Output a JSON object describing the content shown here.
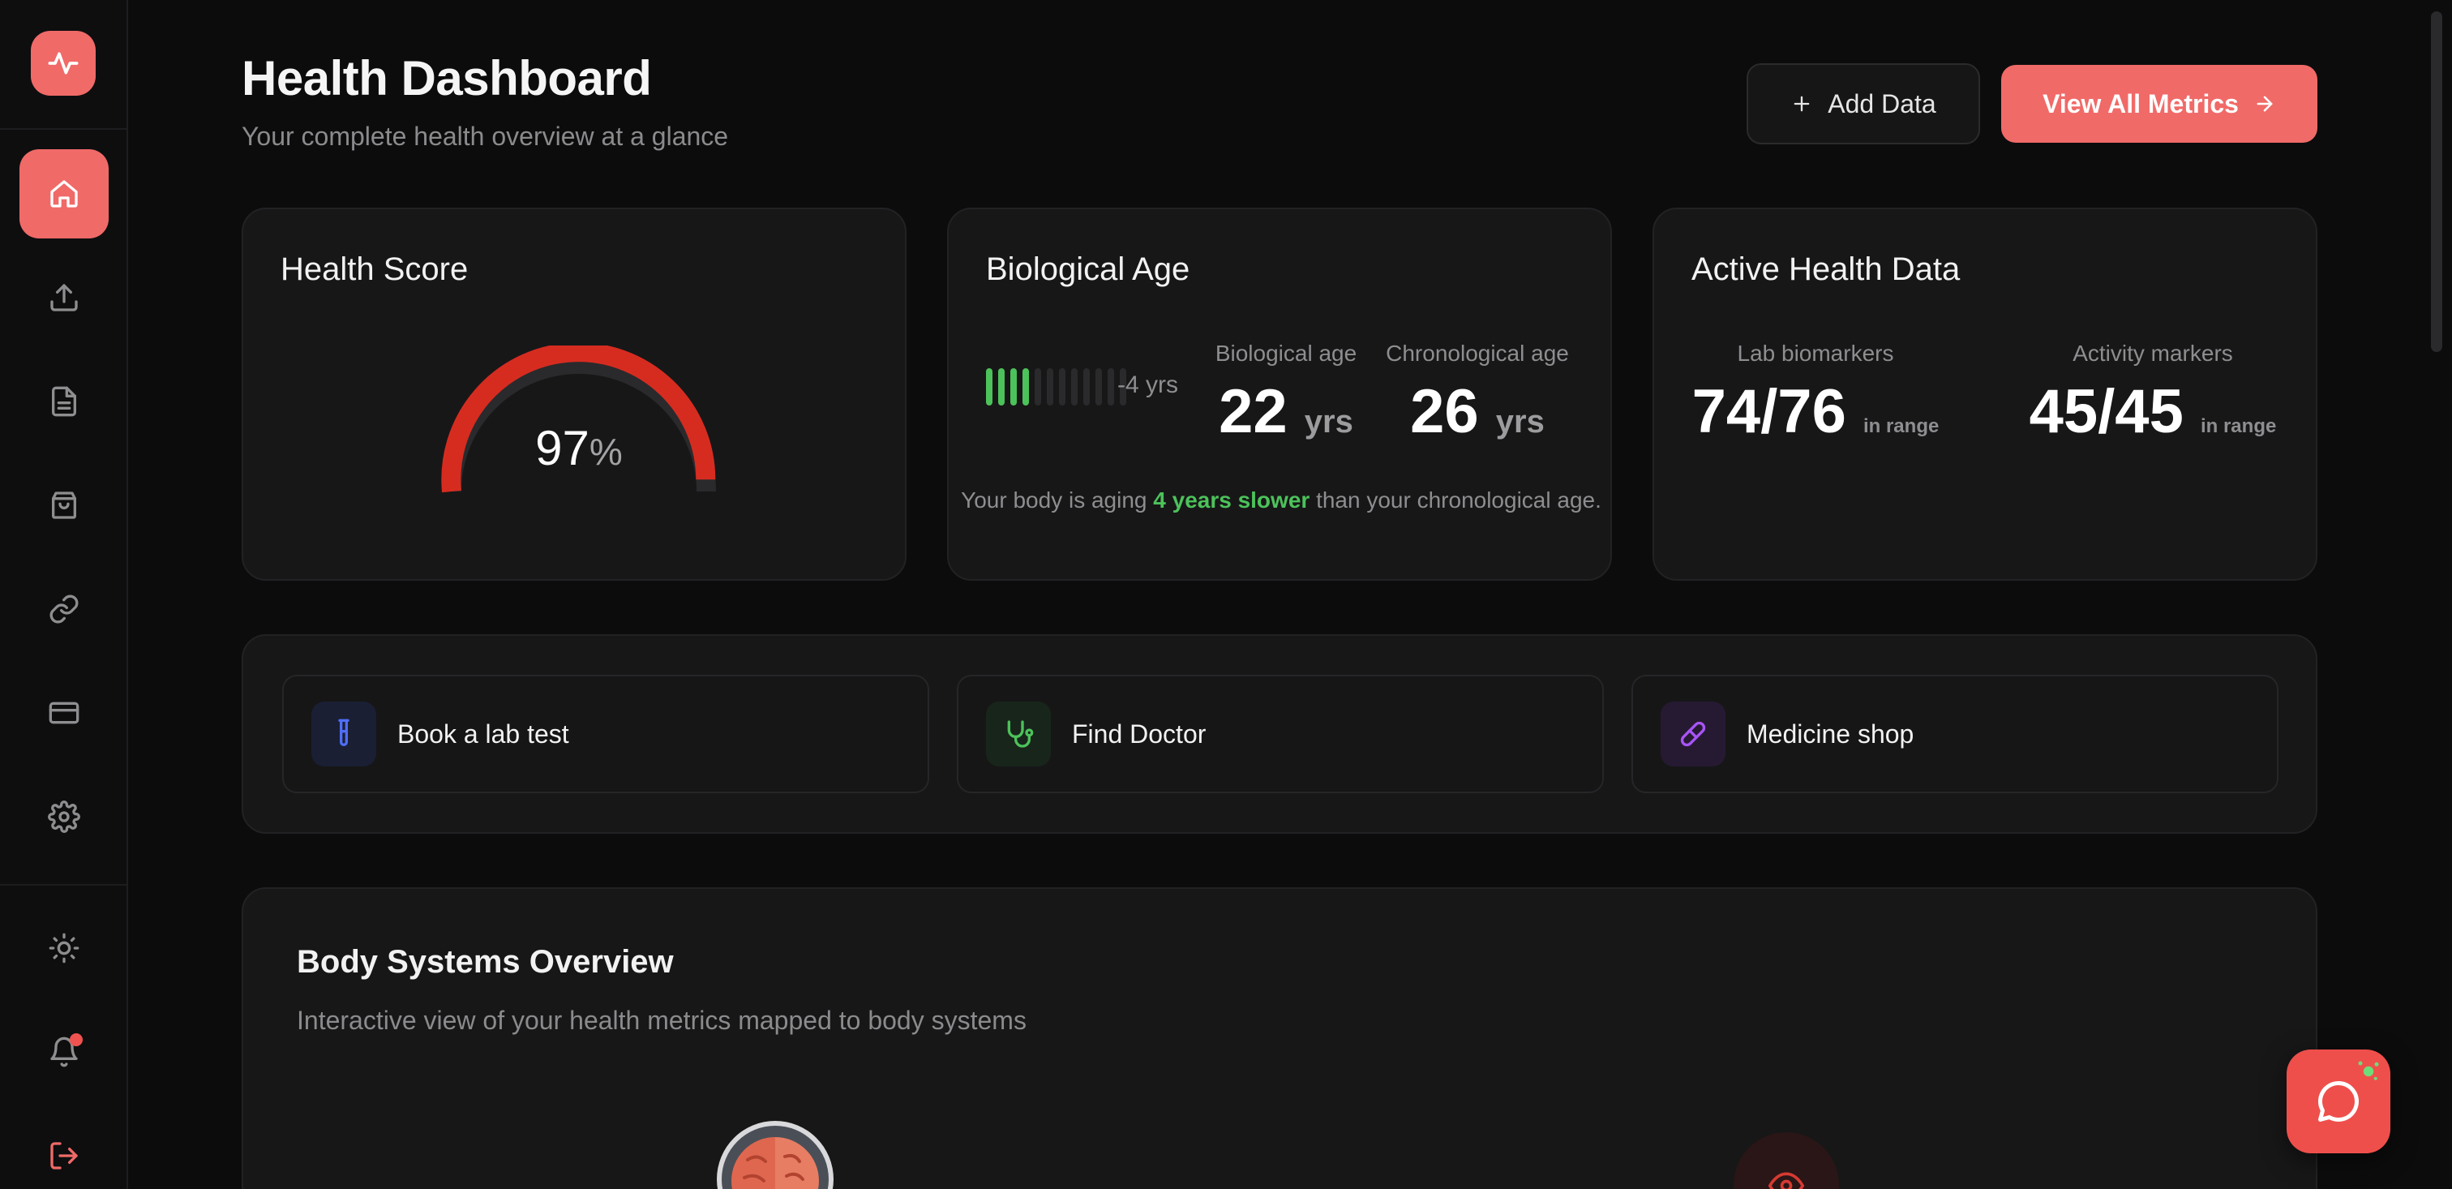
{
  "header": {
    "title": "Health Dashboard",
    "subtitle": "Your complete health overview at a glance",
    "add_label": "Add Data",
    "view_label": "View All Metrics"
  },
  "sidebar": {
    "items": [
      {
        "name": "home",
        "icon": "home-icon",
        "active": true
      },
      {
        "name": "upload",
        "icon": "upload-icon",
        "active": false
      },
      {
        "name": "reports",
        "icon": "document-icon",
        "active": false
      },
      {
        "name": "shop",
        "icon": "shopping-bag-icon",
        "active": false
      },
      {
        "name": "integrations",
        "icon": "link-icon",
        "active": false
      },
      {
        "name": "billing",
        "icon": "credit-card-icon",
        "active": false
      },
      {
        "name": "settings",
        "icon": "gear-icon",
        "active": false
      }
    ],
    "bottom": [
      {
        "name": "theme",
        "icon": "sun-icon"
      },
      {
        "name": "notifications",
        "icon": "bell-icon",
        "has_badge": true
      },
      {
        "name": "logout",
        "icon": "logout-icon"
      }
    ]
  },
  "health_score": {
    "title": "Health Score",
    "value": "97",
    "unit": "%",
    "fraction": 0.97
  },
  "bio_age": {
    "title": "Biological Age",
    "delta": "-4 yrs",
    "bars_total": 12,
    "bars_active": 4,
    "bio_label": "Biological age",
    "bio_value": "22",
    "chrono_label": "Chronological age",
    "chrono_value": "26",
    "unit": "yrs",
    "note_pre": "Your body is aging ",
    "note_highlight": "4 years slower",
    "note_post": " than your chronological age."
  },
  "active_data": {
    "title": "Active Health Data",
    "lab_label": "Lab biomarkers",
    "lab_value": "74/76",
    "activity_label": "Activity markers",
    "activity_value": "45/45",
    "suffix": "in range"
  },
  "quick_actions": [
    {
      "label": "Book a lab test",
      "icon": "test-tube-icon",
      "color": "#4f6ef7"
    },
    {
      "label": "Find Doctor",
      "icon": "stethoscope-icon",
      "color": "#4cc25a"
    },
    {
      "label": "Medicine shop",
      "icon": "pill-icon",
      "color": "#a855f7"
    }
  ],
  "body_systems": {
    "title": "Body Systems Overview",
    "subtitle": "Interactive view of your health metrics mapped to body systems"
  },
  "colors": {
    "accent": "#f06a68",
    "gauge": "#d62c20",
    "success": "#4cc25a"
  }
}
